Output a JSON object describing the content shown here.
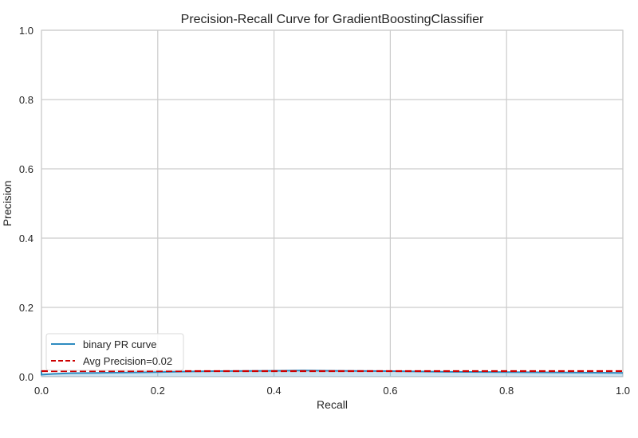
{
  "chart_data": {
    "type": "line",
    "title": "Precision-Recall Curve for GradientBoostingClassifier",
    "xlabel": "Recall",
    "ylabel": "Precision",
    "xlim": [
      0,
      1
    ],
    "ylim": [
      0,
      1
    ],
    "x_ticks": [
      "0.0",
      "0.2",
      "0.4",
      "0.6",
      "0.8",
      "1.0"
    ],
    "y_ticks": [
      "0.0",
      "0.2",
      "0.4",
      "0.6",
      "0.8",
      "1.0"
    ],
    "grid": true,
    "legend_position": "lower-left",
    "series": [
      {
        "name": "binary PR curve",
        "style": "solid",
        "color": "#2E8BC0",
        "fill": true,
        "x": [
          0.0,
          0.0,
          0.02,
          0.05,
          0.1,
          0.15,
          0.2,
          0.25,
          0.3,
          0.4,
          0.45,
          0.5,
          0.6,
          0.7,
          0.8,
          0.9,
          1.0
        ],
        "y": [
          0.018,
          0.006,
          0.008,
          0.01,
          0.011,
          0.012,
          0.013,
          0.015,
          0.016,
          0.017,
          0.018,
          0.017,
          0.016,
          0.014,
          0.013,
          0.012,
          0.011
        ]
      },
      {
        "name": "Avg Precision=0.02",
        "style": "dashed",
        "color": "#CC0000",
        "x": [
          0.0,
          1.0
        ],
        "y": [
          0.016,
          0.016
        ]
      }
    ]
  }
}
